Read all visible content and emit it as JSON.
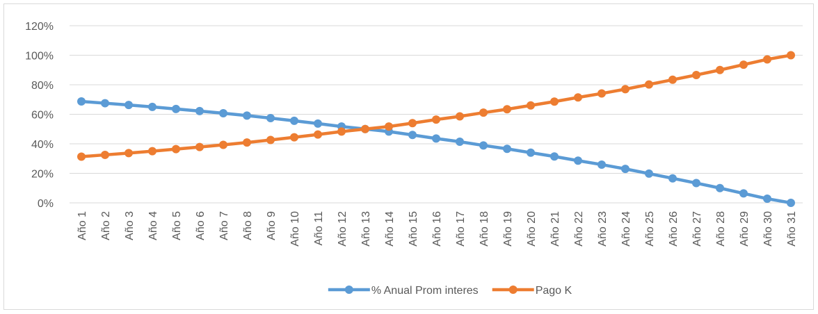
{
  "chart_data": {
    "type": "line",
    "categories": [
      "Año 1",
      "Año 2",
      "Año 3",
      "Año 4",
      "Año 5",
      "Año 6",
      "Año 7",
      "Año 8",
      "Año 9",
      "Año 10",
      "Año 11",
      "Año 12",
      "Año 13",
      "Año 14",
      "Año 15",
      "Año 16",
      "Año 17",
      "Año 18",
      "Año 19",
      "Año 20",
      "Año 21",
      "Año 22",
      "Año 23",
      "Año 24",
      "Año 25",
      "Año 26",
      "Año 27",
      "Año 28",
      "Año 29",
      "Año 30",
      "Año 31"
    ],
    "series": [
      {
        "name": "% Anual Prom interes",
        "color": "#5b9bd5",
        "values": [
          68.7,
          67.5,
          66.3,
          65,
          63.6,
          62.2,
          60.7,
          59.1,
          57.4,
          55.6,
          53.7,
          51.7,
          50,
          48.3,
          46,
          43.6,
          41.4,
          38.9,
          36.6,
          34,
          31.4,
          28.6,
          25.9,
          23,
          19.8,
          16.6,
          13.4,
          10,
          6.4,
          2.8,
          0
        ]
      },
      {
        "name": "Pago K",
        "color": "#ed7d31",
        "values": [
          31.3,
          32.5,
          33.7,
          35,
          36.4,
          37.8,
          39.3,
          40.9,
          42.6,
          44.4,
          46.3,
          48.3,
          50,
          51.7,
          54,
          56.4,
          58.6,
          61.1,
          63.4,
          66,
          68.6,
          71.4,
          74.1,
          77,
          80.2,
          83.4,
          86.6,
          90,
          93.6,
          97.2,
          100
        ]
      }
    ],
    "ylim": [
      0,
      120
    ],
    "yticks": [
      {
        "value": 0,
        "label": "0%"
      },
      {
        "value": 20,
        "label": "20%"
      },
      {
        "value": 40,
        "label": "40%"
      },
      {
        "value": 60,
        "label": "60%"
      },
      {
        "value": 80,
        "label": "80%"
      },
      {
        "value": 100,
        "label": "100%"
      },
      {
        "value": 120,
        "label": "120%"
      }
    ],
    "grid": true,
    "legend": "bottom"
  }
}
